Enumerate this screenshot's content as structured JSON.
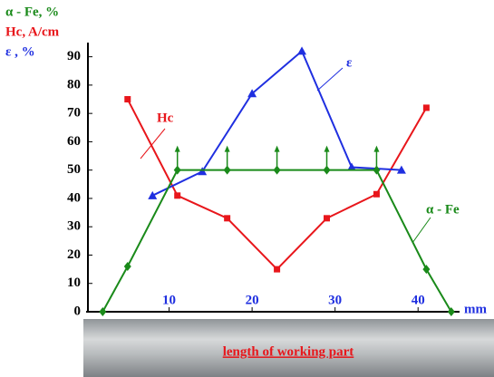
{
  "chart_data": {
    "type": "line",
    "ylabels": [
      "α - Fe, %",
      "Hc, A/cm",
      "ε , %"
    ],
    "ylabel_colors": [
      "#1a8a1a",
      "#e8161b",
      "#1f2fe0"
    ],
    "xunit": "mm",
    "xlim": [
      0,
      45
    ],
    "xticks": [
      10,
      20,
      30,
      40
    ],
    "ylim": [
      0,
      95
    ],
    "yticks": [
      0,
      10,
      20,
      30,
      40,
      50,
      60,
      70,
      80,
      90
    ],
    "series": [
      {
        "name": "Hc",
        "color": "#e8161b",
        "marker": "square",
        "x": [
          5,
          11,
          17,
          23,
          29,
          35,
          41
        ],
        "values": [
          75,
          41,
          33,
          15,
          33,
          41.5,
          72
        ]
      },
      {
        "name": "ε",
        "color": "#1f2fe0",
        "marker": "triangle",
        "x": [
          8,
          14,
          20,
          26,
          32,
          38
        ],
        "values": [
          41,
          49.5,
          77,
          92,
          51,
          50
        ]
      },
      {
        "name": "α - Fe",
        "color": "#1a8a1a",
        "marker": "diamond",
        "x": [
          2,
          5,
          11,
          17,
          23,
          29,
          35,
          41,
          44
        ],
        "values": [
          0,
          16,
          50,
          50,
          50,
          50,
          50,
          15,
          0
        ],
        "errors": [
          null,
          null,
          8,
          8,
          8,
          8,
          8,
          null,
          null
        ]
      }
    ],
    "strip_label": "length of working part"
  }
}
